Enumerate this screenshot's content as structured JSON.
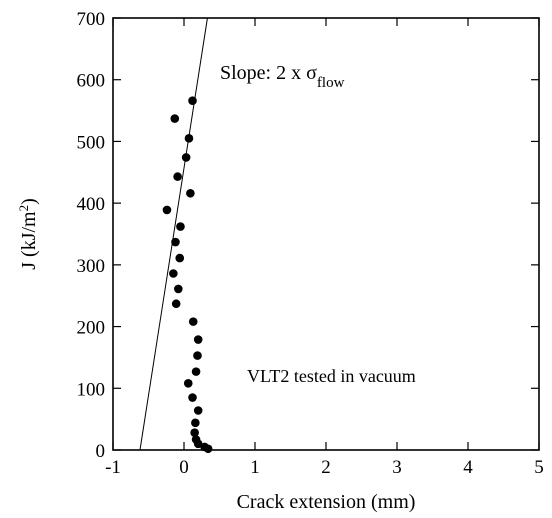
{
  "chart_data": {
    "type": "scatter",
    "xlabel": "Crack extension (mm)",
    "ylabel": {
      "prefix": "J (kJ/m",
      "sup": "2",
      "suffix": ")"
    },
    "xlim": [
      -1,
      5
    ],
    "ylim": [
      0,
      700
    ],
    "xticks": [
      -1,
      0,
      1,
      2,
      3,
      4,
      5
    ],
    "yticks": [
      0,
      100,
      200,
      300,
      400,
      500,
      600,
      700
    ],
    "grid": false,
    "legend": "none",
    "annotations": {
      "slope": {
        "prefix": "Slope: 2 x σ",
        "sub": "flow"
      },
      "specimen": "VLT2 tested in vacuum"
    },
    "points": [
      {
        "x": 0.12,
        "y": 566
      },
      {
        "x": -0.13,
        "y": 537
      },
      {
        "x": 0.07,
        "y": 505
      },
      {
        "x": 0.03,
        "y": 474
      },
      {
        "x": -0.09,
        "y": 443
      },
      {
        "x": 0.09,
        "y": 416
      },
      {
        "x": -0.24,
        "y": 389
      },
      {
        "x": -0.05,
        "y": 362
      },
      {
        "x": -0.12,
        "y": 337
      },
      {
        "x": -0.06,
        "y": 311
      },
      {
        "x": -0.15,
        "y": 286
      },
      {
        "x": -0.08,
        "y": 261
      },
      {
        "x": -0.11,
        "y": 237
      },
      {
        "x": 0.13,
        "y": 208
      },
      {
        "x": 0.2,
        "y": 179
      },
      {
        "x": 0.19,
        "y": 153
      },
      {
        "x": 0.17,
        "y": 127
      },
      {
        "x": 0.06,
        "y": 108
      },
      {
        "x": 0.12,
        "y": 85
      },
      {
        "x": 0.2,
        "y": 64
      },
      {
        "x": 0.16,
        "y": 44
      },
      {
        "x": 0.15,
        "y": 28
      },
      {
        "x": 0.17,
        "y": 17
      },
      {
        "x": 0.2,
        "y": 10
      },
      {
        "x": 0.29,
        "y": 5
      },
      {
        "x": 0.34,
        "y": 2
      }
    ],
    "fit_line": {
      "x0": -0.62,
      "y0": 0,
      "x1": 0.33,
      "y1": 700
    }
  }
}
